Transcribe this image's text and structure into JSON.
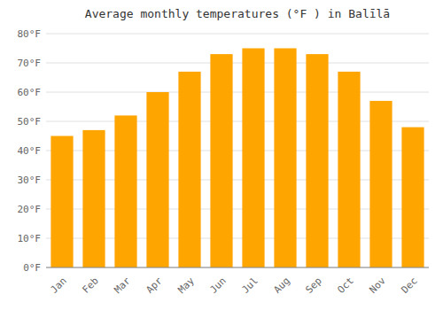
{
  "chart_data": {
    "type": "bar",
    "title": "Average monthly temperatures (°F ) in Balīlā",
    "categories": [
      "Jan",
      "Feb",
      "Mar",
      "Apr",
      "May",
      "Jun",
      "Jul",
      "Aug",
      "Sep",
      "Oct",
      "Nov",
      "Dec"
    ],
    "values": [
      45,
      47,
      52,
      60,
      67,
      73,
      75,
      75,
      73,
      67,
      57,
      48
    ],
    "color": "#FFA500",
    "ylim": [
      0,
      80
    ],
    "yticks": [
      {
        "value": 0,
        "label": "0°F"
      },
      {
        "value": 10,
        "label": "10°F"
      },
      {
        "value": 20,
        "label": "20°F"
      },
      {
        "value": 30,
        "label": "30°F"
      },
      {
        "value": 40,
        "label": "40°F"
      },
      {
        "value": 50,
        "label": "50°F"
      },
      {
        "value": 60,
        "label": "60°F"
      },
      {
        "value": 70,
        "label": "70°F"
      },
      {
        "value": 80,
        "label": "80°F"
      }
    ],
    "grid": true
  }
}
